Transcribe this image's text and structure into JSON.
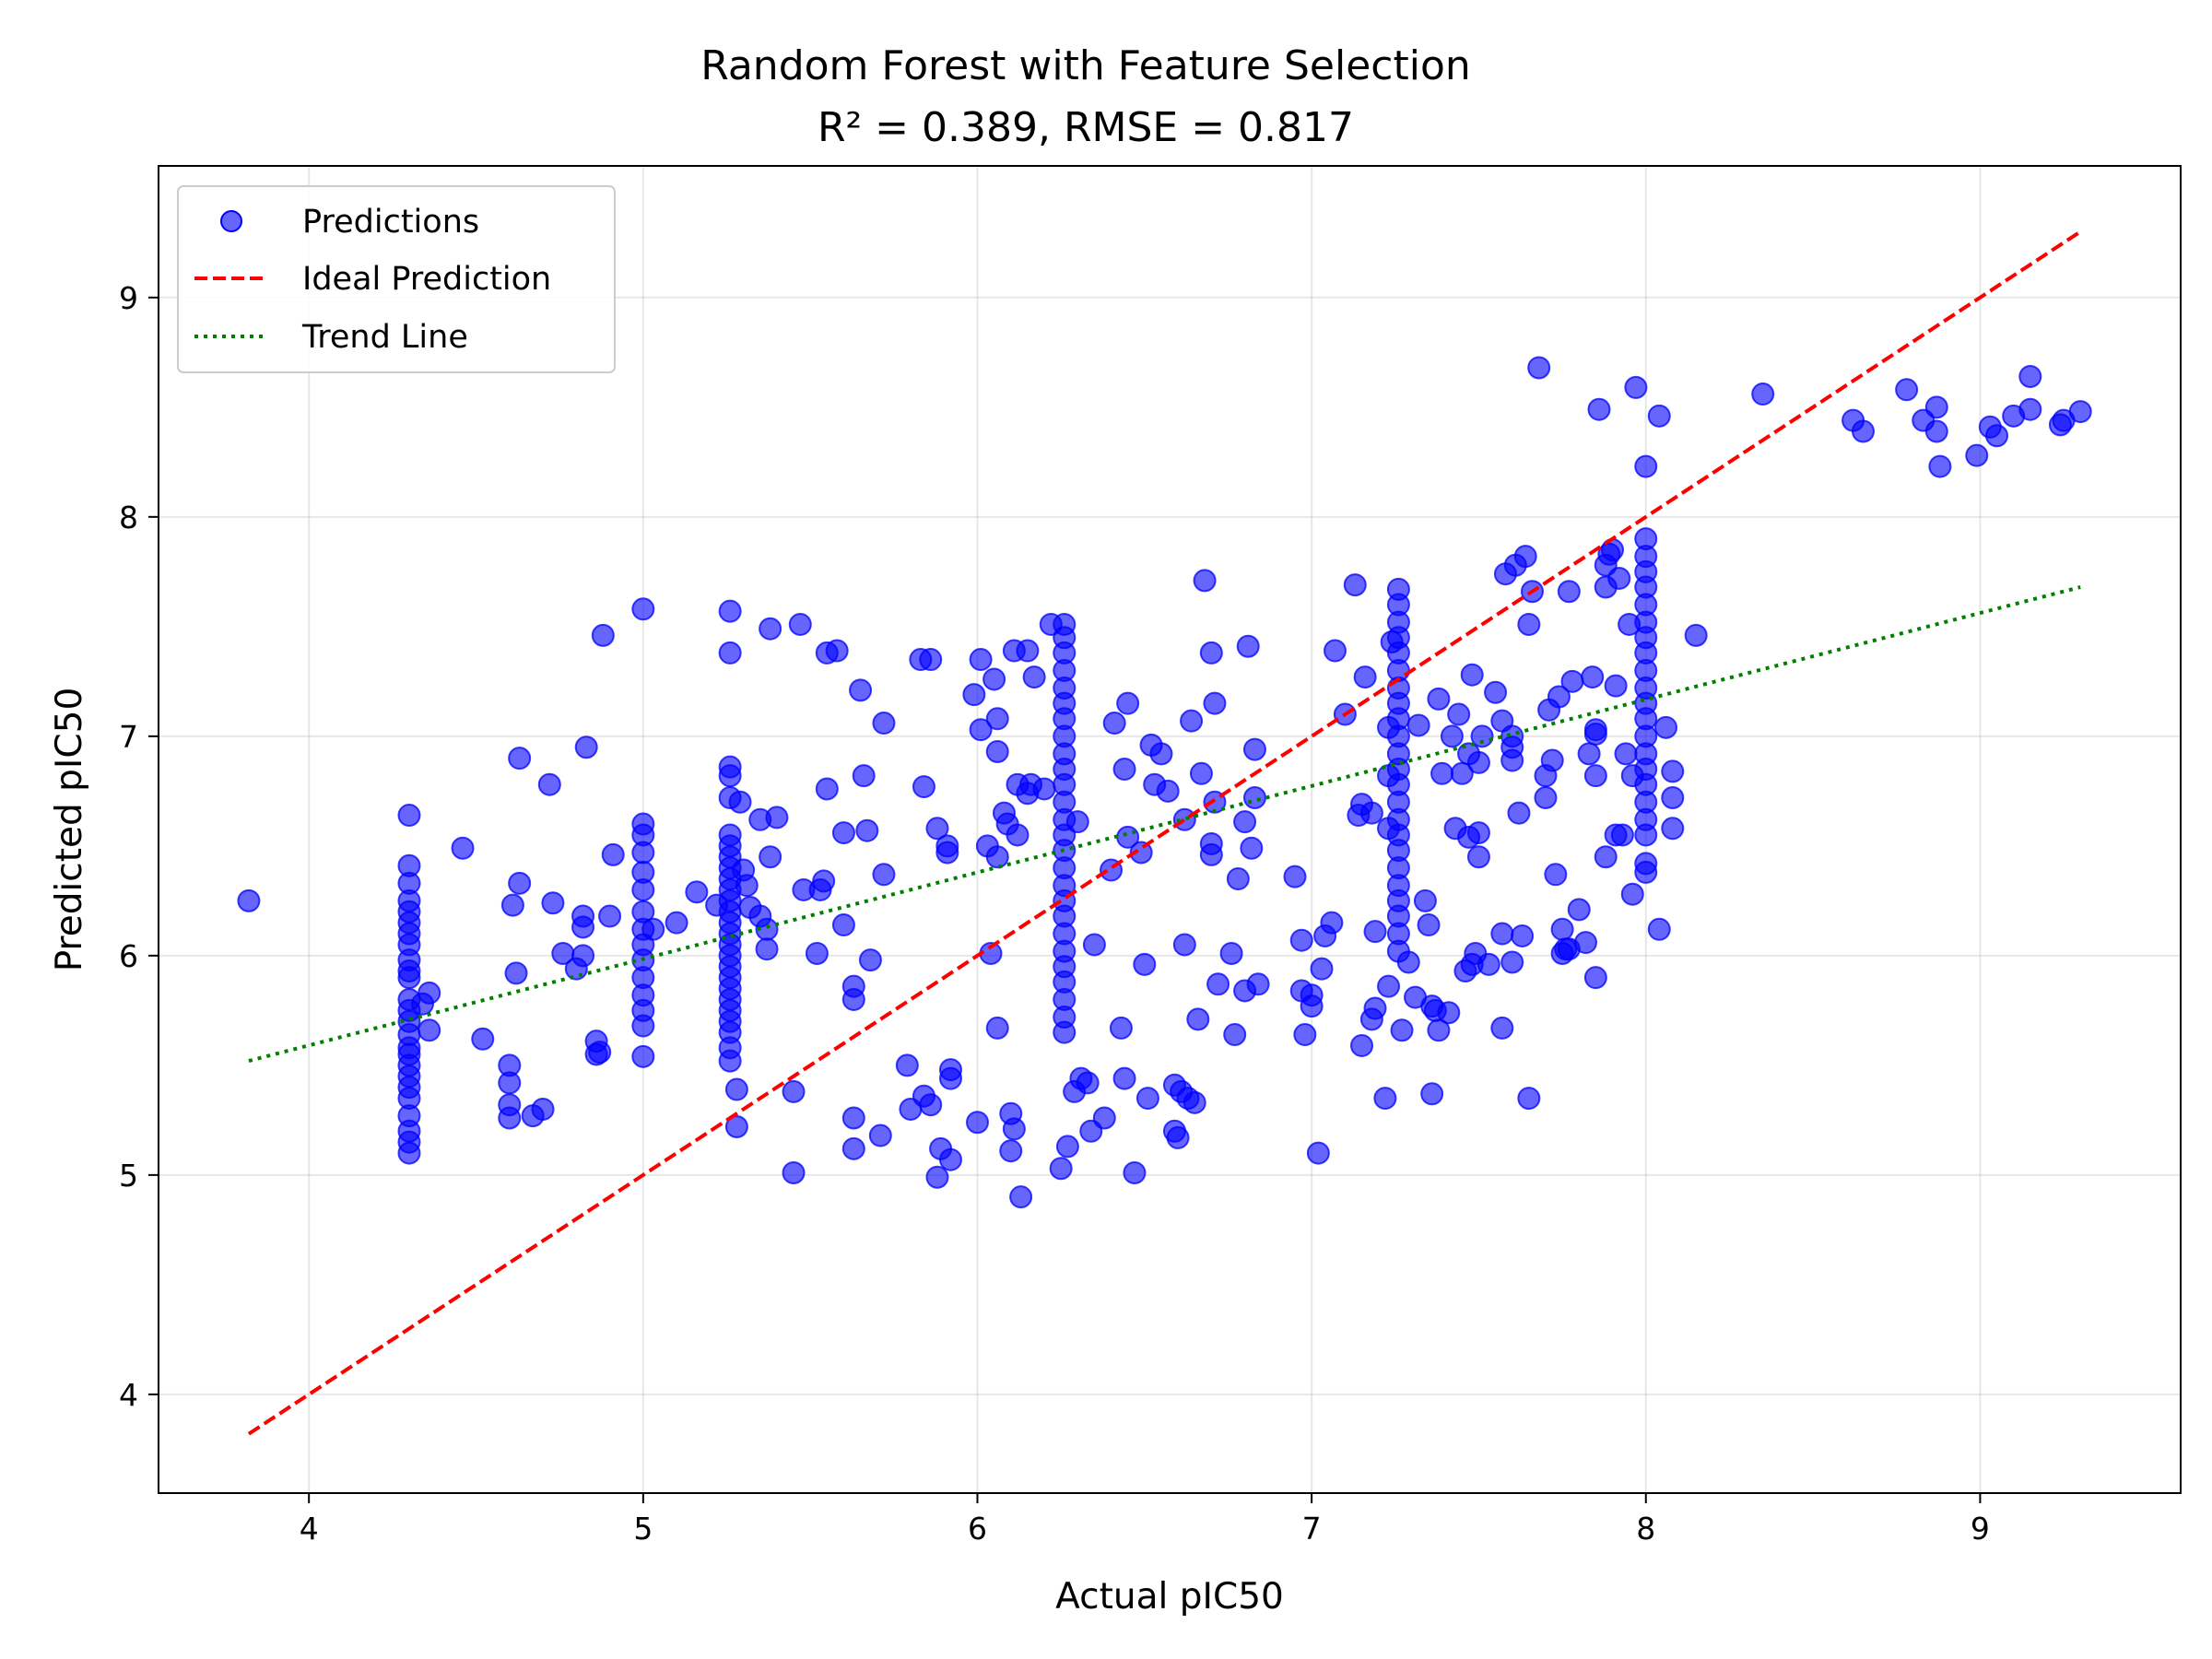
{
  "chart_data": {
    "type": "scatter",
    "title": "Random Forest with Feature Selection",
    "subtitle": "R² = 0.389, RMSE = 0.817",
    "xlabel": "Actual pIC50",
    "ylabel": "Predicted pIC50",
    "xlim": [
      3.55,
      9.6
    ],
    "ylim": [
      3.55,
      9.6
    ],
    "xticks": [
      "4",
      "5",
      "6",
      "7",
      "8",
      "9"
    ],
    "yticks": [
      "4",
      "5",
      "6",
      "7",
      "8",
      "9"
    ],
    "xtick_values": [
      4,
      5,
      6,
      7,
      8,
      9
    ],
    "ytick_values": [
      4,
      5,
      6,
      7,
      8,
      9
    ],
    "grid": true,
    "legend_position": "top-left",
    "legend": {
      "predictions": "Predictions",
      "ideal": "Ideal Prediction",
      "trend": "Trend Line"
    },
    "colors": {
      "points": "#0000ff",
      "ideal": "#ff0000",
      "trend": "#008000"
    },
    "ideal_line": {
      "x": [
        3.82,
        9.3
      ],
      "y": [
        3.82,
        9.3
      ]
    },
    "trend_line": {
      "x": [
        3.82,
        9.3
      ],
      "y": [
        5.52,
        7.68
      ]
    },
    "points": [
      [
        3.82,
        6.25
      ],
      [
        4.3,
        6.64
      ],
      [
        4.3,
        6.41
      ],
      [
        4.3,
        6.33
      ],
      [
        4.3,
        6.25
      ],
      [
        4.3,
        6.2
      ],
      [
        4.3,
        6.15
      ],
      [
        4.3,
        6.1
      ],
      [
        4.3,
        6.05
      ],
      [
        4.3,
        5.98
      ],
      [
        4.3,
        5.93
      ],
      [
        4.3,
        5.9
      ],
      [
        4.3,
        5.8
      ],
      [
        4.3,
        5.75
      ],
      [
        4.3,
        5.7
      ],
      [
        4.3,
        5.64
      ],
      [
        4.3,
        5.58
      ],
      [
        4.3,
        5.55
      ],
      [
        4.3,
        5.5
      ],
      [
        4.3,
        5.45
      ],
      [
        4.3,
        5.4
      ],
      [
        4.3,
        5.35
      ],
      [
        4.3,
        5.27
      ],
      [
        4.3,
        5.2
      ],
      [
        4.3,
        5.15
      ],
      [
        4.3,
        5.1
      ],
      [
        4.34,
        5.78
      ],
      [
        4.36,
        5.83
      ],
      [
        4.36,
        5.66
      ],
      [
        4.46,
        6.49
      ],
      [
        4.52,
        5.62
      ],
      [
        4.6,
        5.5
      ],
      [
        4.6,
        5.42
      ],
      [
        4.6,
        5.32
      ],
      [
        4.6,
        5.26
      ],
      [
        4.61,
        6.23
      ],
      [
        4.62,
        5.92
      ],
      [
        4.63,
        6.9
      ],
      [
        4.63,
        6.33
      ],
      [
        4.67,
        5.27
      ],
      [
        4.7,
        5.3
      ],
      [
        4.72,
        6.78
      ],
      [
        4.73,
        6.24
      ],
      [
        4.76,
        6.01
      ],
      [
        4.8,
        5.94
      ],
      [
        4.82,
        6.18
      ],
      [
        4.82,
        6.13
      ],
      [
        4.82,
        6.0
      ],
      [
        4.83,
        6.95
      ],
      [
        4.86,
        5.61
      ],
      [
        4.86,
        5.55
      ],
      [
        4.87,
        5.56
      ],
      [
        4.88,
        7.46
      ],
      [
        4.9,
        6.18
      ],
      [
        4.91,
        6.46
      ],
      [
        5.0,
        6.6
      ],
      [
        5.0,
        6.55
      ],
      [
        5.0,
        6.47
      ],
      [
        5.0,
        6.38
      ],
      [
        5.0,
        6.3
      ],
      [
        5.0,
        6.2
      ],
      [
        5.0,
        6.12
      ],
      [
        5.0,
        6.05
      ],
      [
        5.0,
        5.98
      ],
      [
        5.0,
        5.9
      ],
      [
        5.0,
        5.82
      ],
      [
        5.0,
        5.75
      ],
      [
        5.0,
        5.68
      ],
      [
        5.0,
        5.54
      ],
      [
        5.0,
        7.58
      ],
      [
        5.03,
        6.12
      ],
      [
        5.1,
        6.15
      ],
      [
        5.16,
        6.29
      ],
      [
        5.22,
        6.23
      ],
      [
        5.26,
        7.57
      ],
      [
        5.26,
        7.38
      ],
      [
        5.26,
        6.86
      ],
      [
        5.26,
        6.82
      ],
      [
        5.26,
        6.72
      ],
      [
        5.26,
        6.55
      ],
      [
        5.26,
        6.5
      ],
      [
        5.26,
        6.45
      ],
      [
        5.26,
        6.4
      ],
      [
        5.26,
        6.35
      ],
      [
        5.26,
        6.3
      ],
      [
        5.26,
        6.25
      ],
      [
        5.26,
        6.2
      ],
      [
        5.26,
        6.15
      ],
      [
        5.26,
        6.1
      ],
      [
        5.26,
        6.05
      ],
      [
        5.26,
        6.0
      ],
      [
        5.26,
        5.95
      ],
      [
        5.26,
        5.9
      ],
      [
        5.26,
        5.85
      ],
      [
        5.26,
        5.8
      ],
      [
        5.26,
        5.75
      ],
      [
        5.26,
        5.7
      ],
      [
        5.26,
        5.65
      ],
      [
        5.26,
        5.58
      ],
      [
        5.26,
        5.52
      ],
      [
        5.28,
        5.22
      ],
      [
        5.28,
        5.39
      ],
      [
        5.29,
        6.7
      ],
      [
        5.3,
        6.39
      ],
      [
        5.31,
        6.32
      ],
      [
        5.32,
        6.22
      ],
      [
        5.35,
        6.62
      ],
      [
        5.35,
        6.18
      ],
      [
        5.37,
        6.03
      ],
      [
        5.37,
        6.12
      ],
      [
        5.38,
        7.49
      ],
      [
        5.38,
        6.45
      ],
      [
        5.4,
        6.63
      ],
      [
        5.45,
        5.01
      ],
      [
        5.45,
        5.38
      ],
      [
        5.47,
        7.51
      ],
      [
        5.48,
        6.3
      ],
      [
        5.52,
        6.01
      ],
      [
        5.53,
        6.3
      ],
      [
        5.54,
        6.34
      ],
      [
        5.55,
        7.38
      ],
      [
        5.55,
        6.76
      ],
      [
        5.58,
        7.39
      ],
      [
        5.6,
        6.14
      ],
      [
        5.6,
        6.56
      ],
      [
        5.63,
        5.12
      ],
      [
        5.63,
        5.26
      ],
      [
        5.63,
        5.8
      ],
      [
        5.63,
        5.86
      ],
      [
        5.65,
        7.21
      ],
      [
        5.66,
        6.82
      ],
      [
        5.67,
        6.57
      ],
      [
        5.68,
        5.98
      ],
      [
        5.71,
        5.18
      ],
      [
        5.72,
        7.06
      ],
      [
        5.72,
        6.37
      ],
      [
        5.79,
        5.5
      ],
      [
        5.8,
        5.3
      ],
      [
        5.83,
        7.35
      ],
      [
        5.84,
        6.77
      ],
      [
        5.84,
        5.36
      ],
      [
        5.86,
        7.35
      ],
      [
        5.86,
        5.32
      ],
      [
        5.88,
        6.58
      ],
      [
        5.88,
        4.99
      ],
      [
        5.89,
        5.12
      ],
      [
        5.91,
        6.5
      ],
      [
        5.91,
        6.47
      ],
      [
        5.92,
        5.48
      ],
      [
        5.92,
        5.44
      ],
      [
        5.92,
        5.07
      ],
      [
        5.99,
        7.19
      ],
      [
        6.0,
        5.24
      ],
      [
        6.01,
        7.35
      ],
      [
        6.01,
        7.03
      ],
      [
        6.03,
        6.5
      ],
      [
        6.04,
        6.01
      ],
      [
        6.05,
        7.26
      ],
      [
        6.06,
        6.93
      ],
      [
        6.06,
        7.08
      ],
      [
        6.06,
        5.67
      ],
      [
        6.06,
        6.45
      ],
      [
        6.08,
        6.65
      ],
      [
        6.09,
        6.6
      ],
      [
        6.1,
        5.28
      ],
      [
        6.1,
        5.11
      ],
      [
        6.11,
        5.21
      ],
      [
        6.11,
        7.39
      ],
      [
        6.12,
        6.78
      ],
      [
        6.12,
        6.55
      ],
      [
        6.13,
        4.9
      ],
      [
        6.15,
        7.39
      ],
      [
        6.15,
        6.74
      ],
      [
        6.16,
        6.78
      ],
      [
        6.17,
        7.27
      ],
      [
        6.2,
        6.76
      ],
      [
        6.22,
        7.51
      ],
      [
        6.25,
        5.03
      ],
      [
        6.26,
        7.51
      ],
      [
        6.27,
        5.13
      ],
      [
        6.26,
        7.45
      ],
      [
        6.26,
        7.38
      ],
      [
        6.26,
        7.3
      ],
      [
        6.26,
        7.22
      ],
      [
        6.26,
        7.15
      ],
      [
        6.26,
        7.08
      ],
      [
        6.26,
        7.0
      ],
      [
        6.26,
        6.92
      ],
      [
        6.26,
        6.85
      ],
      [
        6.26,
        6.78
      ],
      [
        6.26,
        6.7
      ],
      [
        6.26,
        6.62
      ],
      [
        6.26,
        6.55
      ],
      [
        6.26,
        6.48
      ],
      [
        6.26,
        6.4
      ],
      [
        6.26,
        6.32
      ],
      [
        6.26,
        6.25
      ],
      [
        6.26,
        6.18
      ],
      [
        6.26,
        6.1
      ],
      [
        6.26,
        6.02
      ],
      [
        6.26,
        5.95
      ],
      [
        6.26,
        5.88
      ],
      [
        6.26,
        5.8
      ],
      [
        6.26,
        5.72
      ],
      [
        6.26,
        5.65
      ],
      [
        6.29,
        5.38
      ],
      [
        6.3,
        6.61
      ],
      [
        6.31,
        5.44
      ],
      [
        6.33,
        5.42
      ],
      [
        6.34,
        5.2
      ],
      [
        6.35,
        6.05
      ],
      [
        6.38,
        5.26
      ],
      [
        6.4,
        6.39
      ],
      [
        6.41,
        7.06
      ],
      [
        6.43,
        5.67
      ],
      [
        6.44,
        5.44
      ],
      [
        6.44,
        6.85
      ],
      [
        6.45,
        7.15
      ],
      [
        6.45,
        6.54
      ],
      [
        6.47,
        5.01
      ],
      [
        6.49,
        6.47
      ],
      [
        6.5,
        5.96
      ],
      [
        6.51,
        5.35
      ],
      [
        6.52,
        6.96
      ],
      [
        6.53,
        6.78
      ],
      [
        6.55,
        6.92
      ],
      [
        6.57,
        6.75
      ],
      [
        6.59,
        5.41
      ],
      [
        6.59,
        5.2
      ],
      [
        6.6,
        5.17
      ],
      [
        6.61,
        5.38
      ],
      [
        6.62,
        6.62
      ],
      [
        6.62,
        6.05
      ],
      [
        6.63,
        5.35
      ],
      [
        6.64,
        7.07
      ],
      [
        6.65,
        5.33
      ],
      [
        6.66,
        5.71
      ],
      [
        6.67,
        6.83
      ],
      [
        6.68,
        7.71
      ],
      [
        6.7,
        6.51
      ],
      [
        6.7,
        6.46
      ],
      [
        6.7,
        7.38
      ],
      [
        6.71,
        7.15
      ],
      [
        6.71,
        6.7
      ],
      [
        6.72,
        5.87
      ],
      [
        6.76,
        6.01
      ],
      [
        6.77,
        5.64
      ],
      [
        6.78,
        6.35
      ],
      [
        6.8,
        6.61
      ],
      [
        6.8,
        5.84
      ],
      [
        6.81,
        7.41
      ],
      [
        6.82,
        6.49
      ],
      [
        6.83,
        6.72
      ],
      [
        6.83,
        6.94
      ],
      [
        6.84,
        5.87
      ],
      [
        6.95,
        6.36
      ],
      [
        6.97,
        6.07
      ],
      [
        6.97,
        5.84
      ],
      [
        6.98,
        5.64
      ],
      [
        7.0,
        5.82
      ],
      [
        7.0,
        5.77
      ],
      [
        7.02,
        5.1
      ],
      [
        7.03,
        5.94
      ],
      [
        7.04,
        6.09
      ],
      [
        7.06,
        6.15
      ],
      [
        7.07,
        7.39
      ],
      [
        7.1,
        7.1
      ],
      [
        7.13,
        7.69
      ],
      [
        7.14,
        6.64
      ],
      [
        7.15,
        5.59
      ],
      [
        7.15,
        6.69
      ],
      [
        7.16,
        7.27
      ],
      [
        7.18,
        5.71
      ],
      [
        7.18,
        6.65
      ],
      [
        7.19,
        5.76
      ],
      [
        7.19,
        6.11
      ],
      [
        7.22,
        5.35
      ],
      [
        7.23,
        5.86
      ],
      [
        7.23,
        6.58
      ],
      [
        7.23,
        6.82
      ],
      [
        7.23,
        7.04
      ],
      [
        7.24,
        7.43
      ],
      [
        7.26,
        7.67
      ],
      [
        7.26,
        7.6
      ],
      [
        7.26,
        7.52
      ],
      [
        7.26,
        7.45
      ],
      [
        7.26,
        7.38
      ],
      [
        7.26,
        7.3
      ],
      [
        7.26,
        7.22
      ],
      [
        7.26,
        7.15
      ],
      [
        7.26,
        7.08
      ],
      [
        7.26,
        7.0
      ],
      [
        7.26,
        6.92
      ],
      [
        7.26,
        6.85
      ],
      [
        7.26,
        6.78
      ],
      [
        7.26,
        6.7
      ],
      [
        7.26,
        6.62
      ],
      [
        7.26,
        6.55
      ],
      [
        7.26,
        6.48
      ],
      [
        7.26,
        6.4
      ],
      [
        7.26,
        6.32
      ],
      [
        7.26,
        6.25
      ],
      [
        7.26,
        6.18
      ],
      [
        7.26,
        6.1
      ],
      [
        7.26,
        6.02
      ],
      [
        7.27,
        5.66
      ],
      [
        7.29,
        5.97
      ],
      [
        7.31,
        5.81
      ],
      [
        7.32,
        7.05
      ],
      [
        7.34,
        6.25
      ],
      [
        7.35,
        6.14
      ],
      [
        7.36,
        5.77
      ],
      [
        7.36,
        5.37
      ],
      [
        7.37,
        5.75
      ],
      [
        7.38,
        7.17
      ],
      [
        7.38,
        5.66
      ],
      [
        7.39,
        6.83
      ],
      [
        7.41,
        5.74
      ],
      [
        7.42,
        7.0
      ],
      [
        7.43,
        6.58
      ],
      [
        7.44,
        7.1
      ],
      [
        7.45,
        6.83
      ],
      [
        7.46,
        5.93
      ],
      [
        7.47,
        6.92
      ],
      [
        7.47,
        6.54
      ],
      [
        7.48,
        7.28
      ],
      [
        7.48,
        5.96
      ],
      [
        7.49,
        6.01
      ],
      [
        7.5,
        6.88
      ],
      [
        7.5,
        6.45
      ],
      [
        7.5,
        6.56
      ],
      [
        7.51,
        7.0
      ],
      [
        7.53,
        5.96
      ],
      [
        7.55,
        7.2
      ],
      [
        7.57,
        5.67
      ],
      [
        7.57,
        6.1
      ],
      [
        7.57,
        7.07
      ],
      [
        7.58,
        7.74
      ],
      [
        7.6,
        5.97
      ],
      [
        7.6,
        7.0
      ],
      [
        7.6,
        6.95
      ],
      [
        7.6,
        6.89
      ],
      [
        7.61,
        7.78
      ],
      [
        7.62,
        6.65
      ],
      [
        7.63,
        6.09
      ],
      [
        7.64,
        7.82
      ],
      [
        7.65,
        7.51
      ],
      [
        7.65,
        5.35
      ],
      [
        7.66,
        7.66
      ],
      [
        7.68,
        8.68
      ],
      [
        7.7,
        6.72
      ],
      [
        7.7,
        6.82
      ],
      [
        7.71,
        7.12
      ],
      [
        7.72,
        6.89
      ],
      [
        7.73,
        6.37
      ],
      [
        7.74,
        7.18
      ],
      [
        7.75,
        6.12
      ],
      [
        7.75,
        6.01
      ],
      [
        7.76,
        6.03
      ],
      [
        7.77,
        6.03
      ],
      [
        7.77,
        7.66
      ],
      [
        7.78,
        7.25
      ],
      [
        7.8,
        6.21
      ],
      [
        7.82,
        6.06
      ],
      [
        7.83,
        6.92
      ],
      [
        7.84,
        7.27
      ],
      [
        7.85,
        7.03
      ],
      [
        7.85,
        7.01
      ],
      [
        7.85,
        6.82
      ],
      [
        7.85,
        5.9
      ],
      [
        7.86,
        8.49
      ],
      [
        7.88,
        6.45
      ],
      [
        7.88,
        7.68
      ],
      [
        7.88,
        7.78
      ],
      [
        7.89,
        7.83
      ],
      [
        7.9,
        7.85
      ],
      [
        7.91,
        6.55
      ],
      [
        7.91,
        7.23
      ],
      [
        7.92,
        7.72
      ],
      [
        7.93,
        6.55
      ],
      [
        7.94,
        6.92
      ],
      [
        7.95,
        7.51
      ],
      [
        7.96,
        6.82
      ],
      [
        7.96,
        6.28
      ],
      [
        7.97,
        8.59
      ],
      [
        8.0,
        7.9
      ],
      [
        8.0,
        7.82
      ],
      [
        8.0,
        7.75
      ],
      [
        8.0,
        7.68
      ],
      [
        8.0,
        7.6
      ],
      [
        8.0,
        7.52
      ],
      [
        8.0,
        7.45
      ],
      [
        8.0,
        7.38
      ],
      [
        8.0,
        7.3
      ],
      [
        8.0,
        7.22
      ],
      [
        8.0,
        7.15
      ],
      [
        8.0,
        7.08
      ],
      [
        8.0,
        7.0
      ],
      [
        8.0,
        6.92
      ],
      [
        8.0,
        6.85
      ],
      [
        8.0,
        6.78
      ],
      [
        8.0,
        6.7
      ],
      [
        8.0,
        6.62
      ],
      [
        8.0,
        6.55
      ],
      [
        8.0,
        6.42
      ],
      [
        8.0,
        6.38
      ],
      [
        8.0,
        8.23
      ],
      [
        8.04,
        8.46
      ],
      [
        8.04,
        6.12
      ],
      [
        8.06,
        7.04
      ],
      [
        8.08,
        6.84
      ],
      [
        8.08,
        6.72
      ],
      [
        8.08,
        6.58
      ],
      [
        8.15,
        7.46
      ],
      [
        8.35,
        8.56
      ],
      [
        8.62,
        8.44
      ],
      [
        8.65,
        8.39
      ],
      [
        8.78,
        8.58
      ],
      [
        8.83,
        8.44
      ],
      [
        8.87,
        8.5
      ],
      [
        8.87,
        8.39
      ],
      [
        8.88,
        8.23
      ],
      [
        8.99,
        8.28
      ],
      [
        9.03,
        8.41
      ],
      [
        9.05,
        8.37
      ],
      [
        9.1,
        8.46
      ],
      [
        9.15,
        8.49
      ],
      [
        9.15,
        8.64
      ],
      [
        9.24,
        8.42
      ],
      [
        9.25,
        8.44
      ],
      [
        9.3,
        8.48
      ]
    ]
  }
}
